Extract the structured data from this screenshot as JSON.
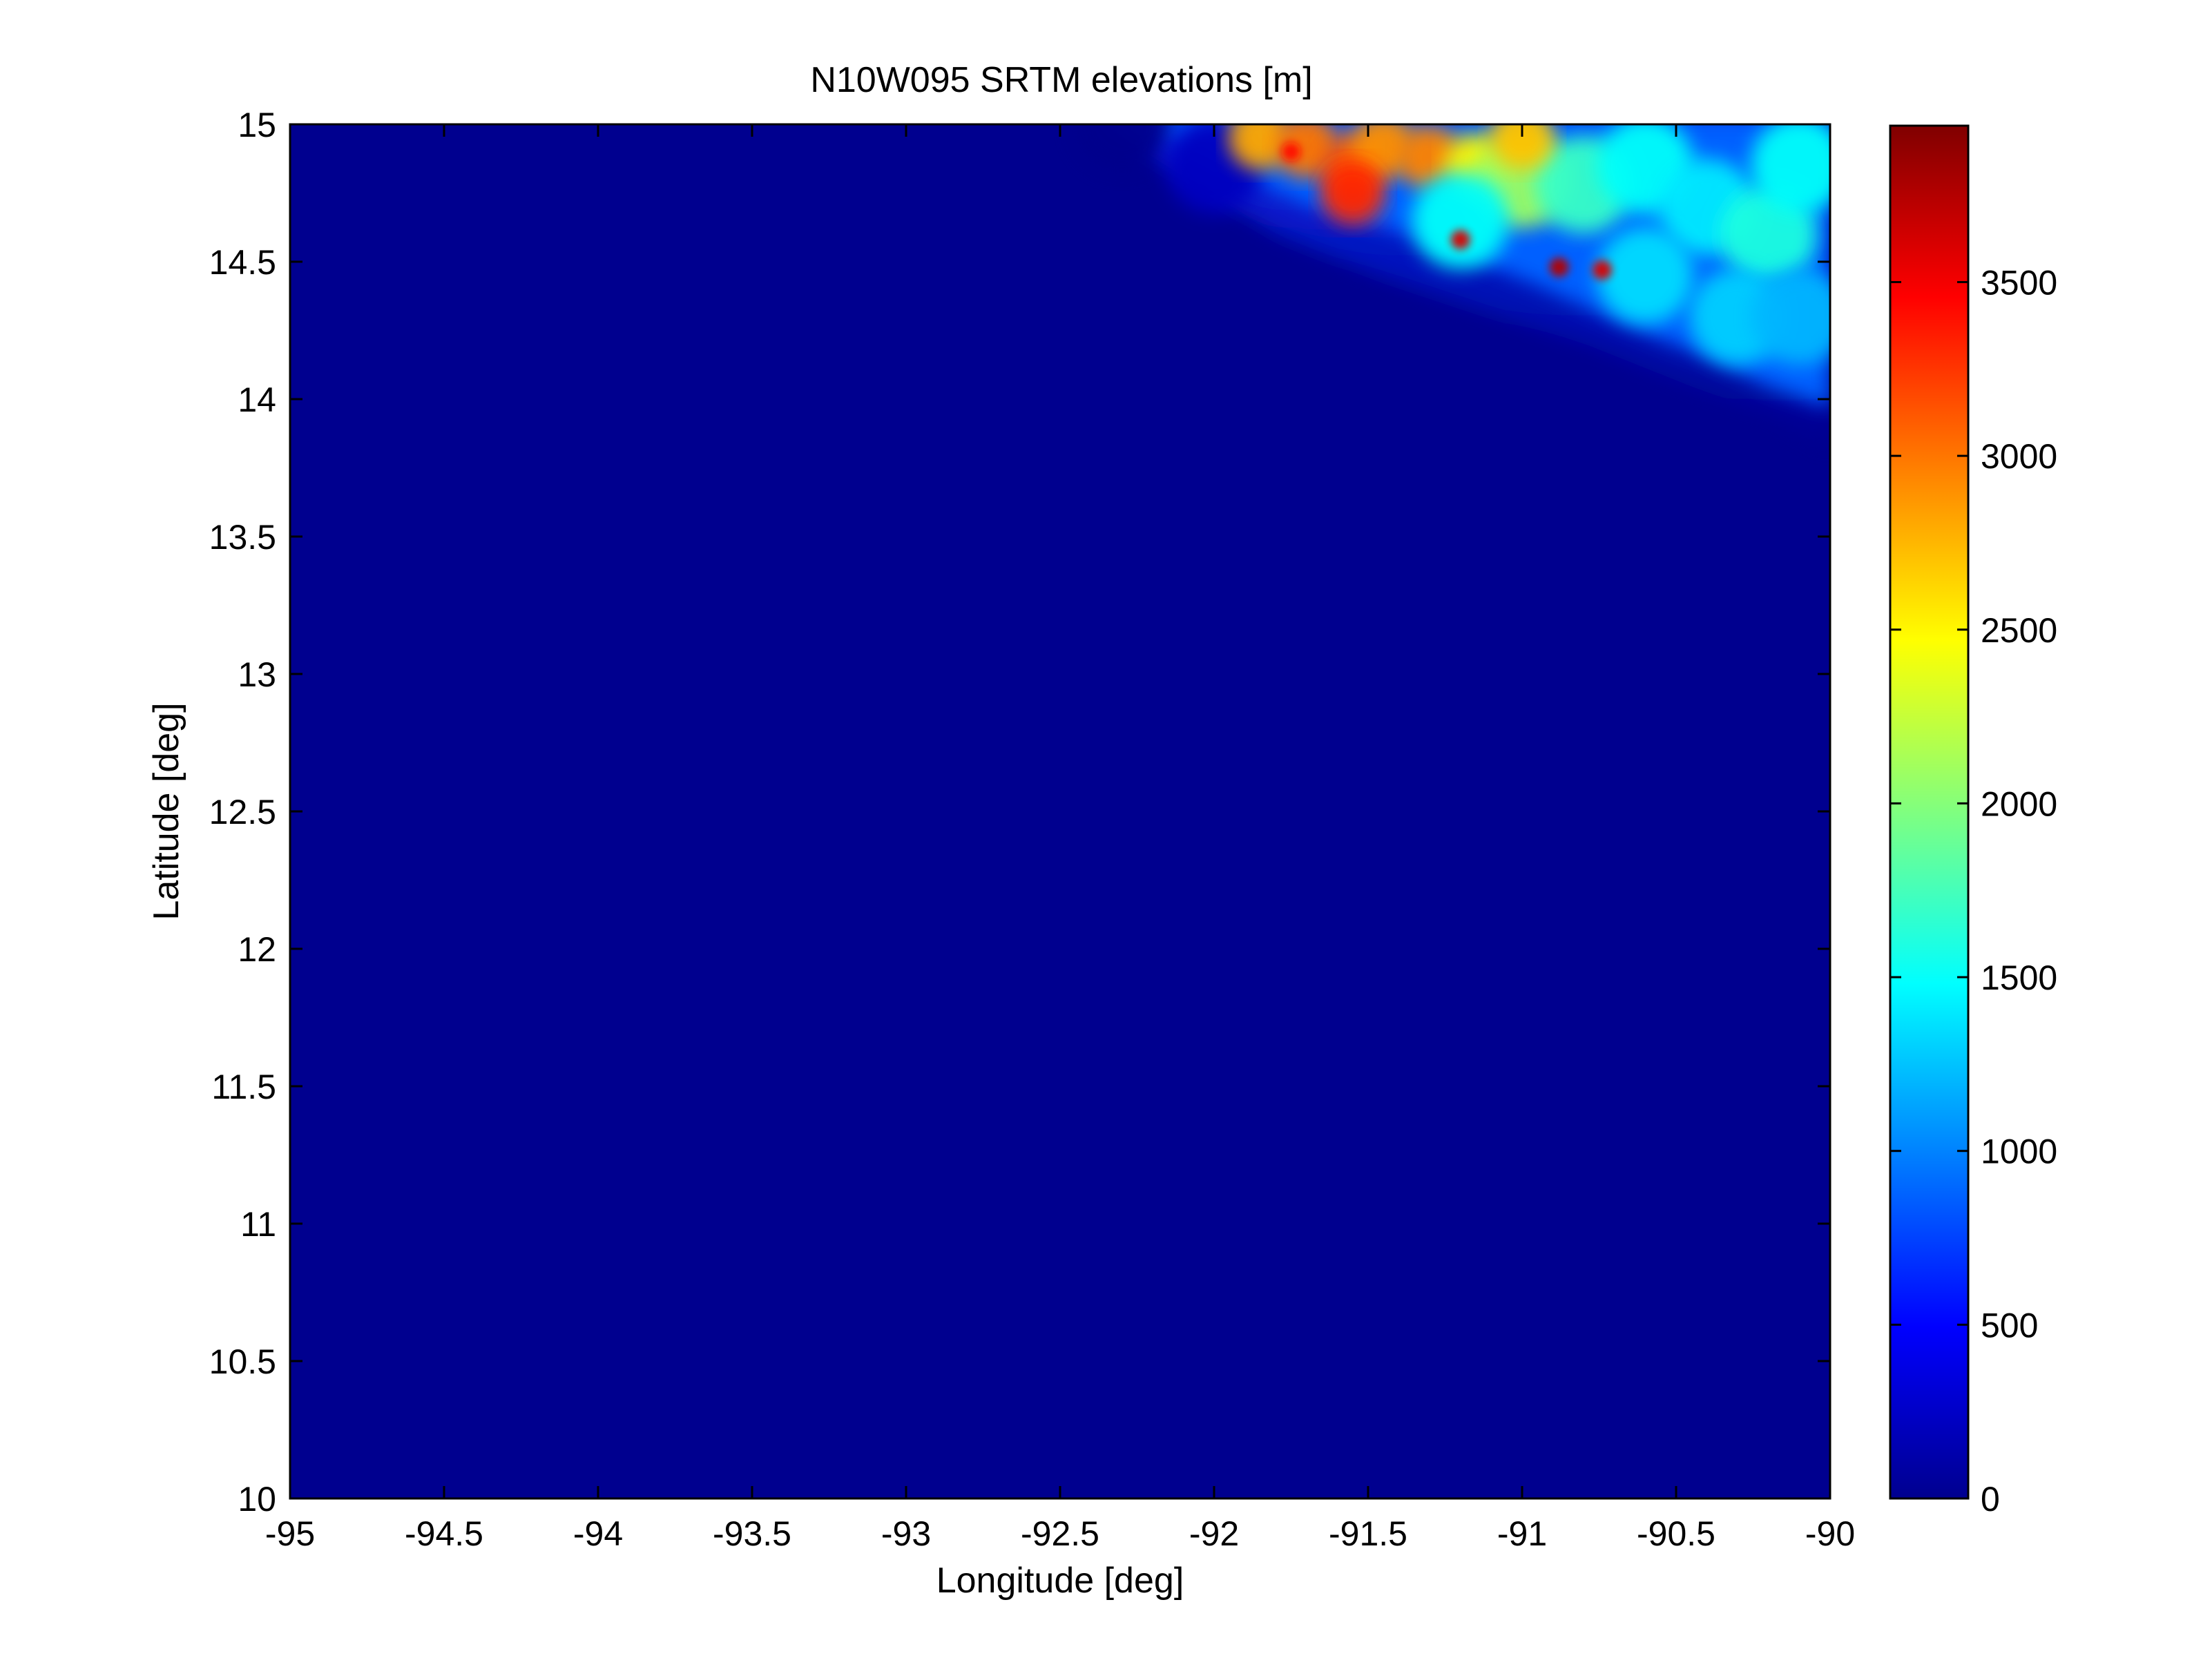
{
  "chart_data": {
    "type": "heatmap",
    "title": "N10W095 SRTM elevations [m]",
    "xlabel": "Longitude [deg]",
    "ylabel": "Latitude [deg]",
    "xlim": [
      -95,
      -90
    ],
    "ylim": [
      10,
      15
    ],
    "x_ticks": [
      "-95",
      "-94.5",
      "-94",
      "-93.5",
      "-93",
      "-92.5",
      "-92",
      "-91.5",
      "-91",
      "-90.5",
      "-90"
    ],
    "y_ticks": [
      "10",
      "10.5",
      "11",
      "11.5",
      "12",
      "12.5",
      "13",
      "13.5",
      "14",
      "14.5",
      "15"
    ],
    "colormap": "jet",
    "colorbar": {
      "range": [
        0,
        3950
      ],
      "ticks": [
        "0",
        "500",
        "1000",
        "1500",
        "2000",
        "2500",
        "3000",
        "3500"
      ]
    },
    "grid": false,
    "features": [
      {
        "lon": -92.3,
        "lat": 15.0,
        "elev": 50
      },
      {
        "lon": -92.0,
        "lat": 14.85,
        "elev": 250
      },
      {
        "lon": -91.85,
        "lat": 14.95,
        "elev": 2800
      },
      {
        "lon": -91.7,
        "lat": 14.92,
        "elev": 3000
      },
      {
        "lon": -91.55,
        "lat": 14.85,
        "elev": 3100
      },
      {
        "lon": -91.45,
        "lat": 14.92,
        "elev": 2900
      },
      {
        "lon": -91.3,
        "lat": 14.88,
        "elev": 2950
      },
      {
        "lon": -91.15,
        "lat": 14.85,
        "elev": 2500
      },
      {
        "lon": -91.0,
        "lat": 14.8,
        "elev": 2100
      },
      {
        "lon": -90.8,
        "lat": 14.78,
        "elev": 1700
      },
      {
        "lon": -90.6,
        "lat": 14.85,
        "elev": 1500
      },
      {
        "lon": -90.4,
        "lat": 14.7,
        "elev": 1400
      },
      {
        "lon": -90.2,
        "lat": 14.6,
        "elev": 1600
      },
      {
        "lon": -90.1,
        "lat": 14.85,
        "elev": 1500
      },
      {
        "lon": -90.3,
        "lat": 14.3,
        "elev": 1300
      },
      {
        "lon": -90.6,
        "lat": 14.45,
        "elev": 1350
      },
      {
        "lon": -90.1,
        "lat": 14.3,
        "elev": 1200
      },
      {
        "lon": -91.2,
        "lat": 14.65,
        "elev": 1500
      },
      {
        "lon": -91.55,
        "lat": 14.75,
        "elev": 3300
      },
      {
        "lon": -91.2,
        "lat": 14.58,
        "elev": 3600
      },
      {
        "lon": -90.88,
        "lat": 14.48,
        "elev": 3750
      },
      {
        "lon": -90.74,
        "lat": 14.47,
        "elev": 3600
      },
      {
        "lon": -91.75,
        "lat": 14.9,
        "elev": 3400
      },
      {
        "lon": -91.0,
        "lat": 14.95,
        "elev": 2700
      }
    ]
  }
}
